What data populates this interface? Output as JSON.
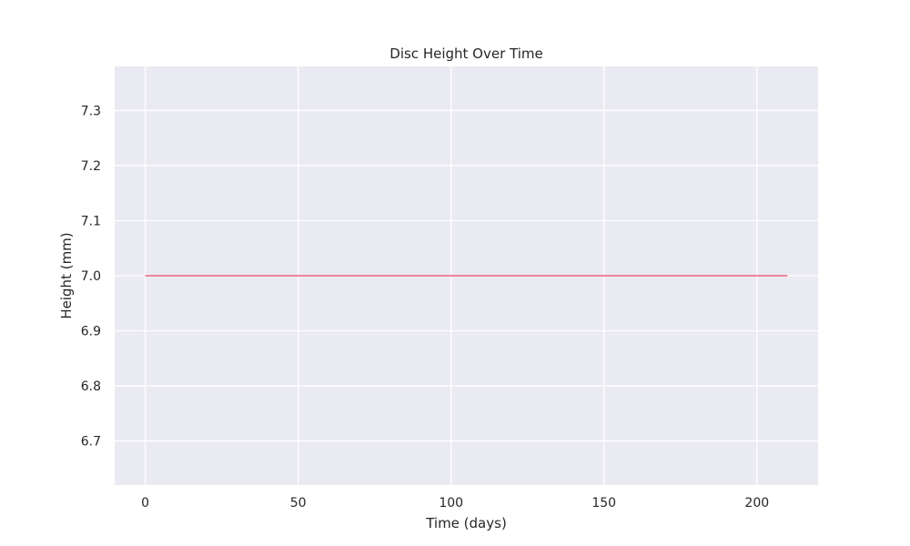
{
  "chart_data": {
    "type": "line",
    "title": "Disc Height Over Time",
    "xlabel": "Time (days)",
    "ylabel": "Height (mm)",
    "xlim": [
      -10,
      220
    ],
    "ylim": [
      6.62,
      7.38
    ],
    "xticks": [
      0,
      50,
      100,
      150,
      200
    ],
    "xtick_labels": [
      "0",
      "50",
      "100",
      "150",
      "200"
    ],
    "yticks": [
      6.7,
      6.8,
      6.9,
      7.0,
      7.1,
      7.2,
      7.3
    ],
    "ytick_labels": [
      "6.7",
      "6.8",
      "6.9",
      "7.0",
      "7.1",
      "7.2",
      "7.3"
    ],
    "grid": true,
    "series": [
      {
        "color": "#f0607d",
        "x": [
          0,
          210
        ],
        "y": [
          7.0,
          7.0
        ]
      }
    ],
    "colors": {
      "plot_background": "#eaeaf2",
      "grid": "#ffffff"
    }
  }
}
